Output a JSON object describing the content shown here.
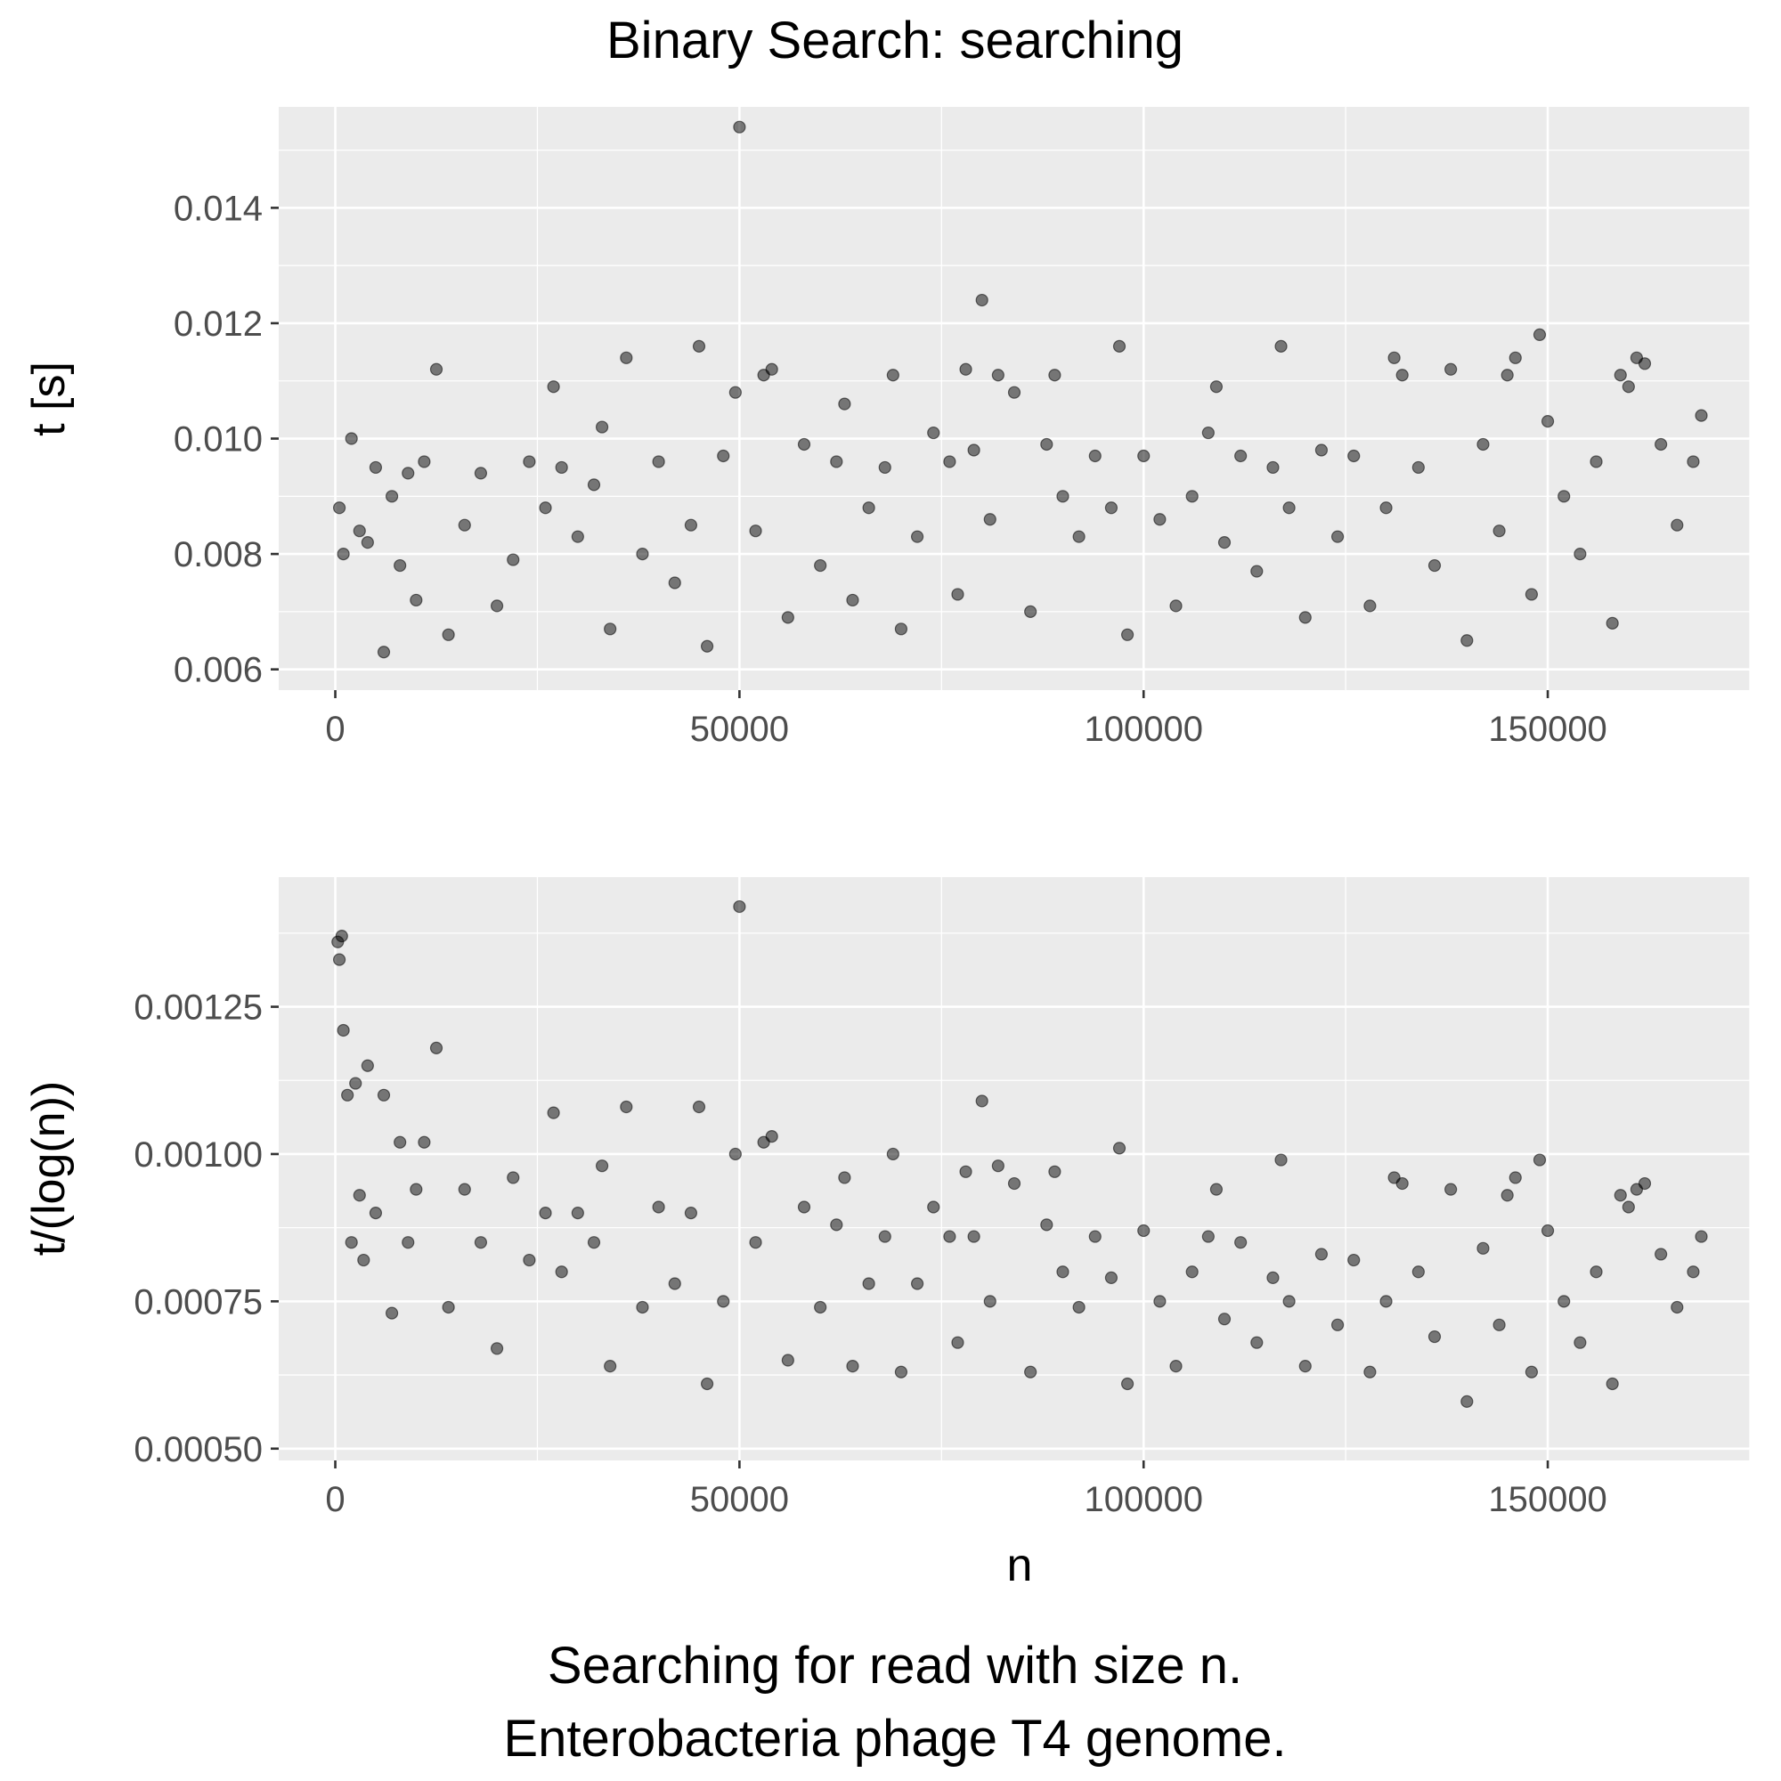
{
  "title": "Binary Search: searching",
  "caption": [
    "Searching for read with size n.",
    "Enterobacteria phage T4 genome."
  ],
  "chart_data": [
    {
      "type": "scatter",
      "title": "Binary Search: searching",
      "xlabel": "",
      "ylabel": "t [s]",
      "xlim": [
        -7000,
        175000
      ],
      "ylim": [
        0.00564,
        0.01575
      ],
      "x_ticks": [
        0,
        50000,
        100000,
        150000
      ],
      "y_ticks": [
        0.006,
        0.008,
        0.01,
        0.012,
        0.014
      ],
      "y_tick_labels": [
        "0.006",
        "0.008",
        "0.010",
        "0.012",
        "0.014"
      ],
      "grid": true,
      "point_color": "#000000",
      "point_alpha": 0.5,
      "x": [
        500,
        1000,
        2000,
        3000,
        4000,
        5000,
        6000,
        7000,
        8000,
        9000,
        10000,
        11000,
        12500,
        14000,
        16000,
        18000,
        20000,
        22000,
        24000,
        26000,
        27000,
        28000,
        30000,
        32000,
        33000,
        34000,
        36000,
        38000,
        40000,
        42000,
        44000,
        45000,
        46000,
        48000,
        49500,
        50000,
        52000,
        53000,
        54000,
        56000,
        58000,
        60000,
        62000,
        63000,
        64000,
        66000,
        68000,
        69000,
        70000,
        72000,
        74000,
        76000,
        77000,
        78000,
        79000,
        80000,
        81000,
        82000,
        84000,
        86000,
        88000,
        89000,
        90000,
        92000,
        94000,
        96000,
        97000,
        98000,
        100000,
        102000,
        104000,
        106000,
        108000,
        109000,
        110000,
        112000,
        114000,
        116000,
        117000,
        118000,
        120000,
        122000,
        124000,
        126000,
        128000,
        130000,
        131000,
        132000,
        134000,
        136000,
        138000,
        140000,
        142000,
        144000,
        145000,
        146000,
        148000,
        149000,
        150000,
        152000,
        154000,
        156000,
        158000,
        159000,
        160000,
        161000,
        162000,
        164000,
        166000,
        168000,
        169000
      ],
      "y": [
        0.0088,
        0.008,
        0.01,
        0.0084,
        0.0082,
        0.0095,
        0.0063,
        0.009,
        0.0078,
        0.0094,
        0.0072,
        0.0096,
        0.0112,
        0.0066,
        0.0085,
        0.0094,
        0.0071,
        0.0079,
        0.0096,
        0.0088,
        0.0109,
        0.0095,
        0.0083,
        0.0092,
        0.0102,
        0.0067,
        0.0114,
        0.008,
        0.0096,
        0.0075,
        0.0085,
        0.0116,
        0.0064,
        0.0097,
        0.0108,
        0.0154,
        0.0084,
        0.0111,
        0.0112,
        0.0069,
        0.0099,
        0.0078,
        0.0096,
        0.0106,
        0.0072,
        0.0088,
        0.0095,
        0.0111,
        0.0067,
        0.0083,
        0.0101,
        0.0096,
        0.0073,
        0.0112,
        0.0098,
        0.0124,
        0.0086,
        0.0111,
        0.0108,
        0.007,
        0.0099,
        0.0111,
        0.009,
        0.0083,
        0.0097,
        0.0088,
        0.0116,
        0.0066,
        0.0097,
        0.0086,
        0.0071,
        0.009,
        0.0101,
        0.0109,
        0.0082,
        0.0097,
        0.0077,
        0.0095,
        0.0116,
        0.0088,
        0.0069,
        0.0098,
        0.0083,
        0.0097,
        0.0071,
        0.0088,
        0.0114,
        0.0111,
        0.0095,
        0.0078,
        0.0112,
        0.0065,
        0.0099,
        0.0084,
        0.0111,
        0.0114,
        0.0073,
        0.0118,
        0.0103,
        0.009,
        0.008,
        0.0096,
        0.0068,
        0.0111,
        0.0109,
        0.0114,
        0.0113,
        0.0099,
        0.0085,
        0.0096,
        0.0104
      ]
    },
    {
      "type": "scatter",
      "xlabel": "n",
      "ylabel": "t/(log(n))",
      "xlim": [
        -7000,
        175000
      ],
      "ylim": [
        0.00048,
        0.00147
      ],
      "x_ticks": [
        0,
        50000,
        100000,
        150000
      ],
      "y_ticks": [
        0.0005,
        0.00075,
        0.001,
        0.00125
      ],
      "y_tick_labels": [
        "0.00050",
        "0.00075",
        "0.00100",
        "0.00125"
      ],
      "grid": true,
      "point_color": "#000000",
      "point_alpha": 0.5,
      "x": [
        300,
        500,
        800,
        1000,
        1500,
        2000,
        2500,
        3000,
        3500,
        4000,
        5000,
        6000,
        7000,
        8000,
        9000,
        10000,
        11000,
        12500,
        14000,
        16000,
        18000,
        20000,
        22000,
        24000,
        26000,
        27000,
        28000,
        30000,
        32000,
        33000,
        34000,
        36000,
        38000,
        40000,
        42000,
        44000,
        45000,
        46000,
        48000,
        49500,
        50000,
        52000,
        53000,
        54000,
        56000,
        58000,
        60000,
        62000,
        63000,
        64000,
        66000,
        68000,
        69000,
        70000,
        72000,
        74000,
        76000,
        77000,
        78000,
        79000,
        80000,
        81000,
        82000,
        84000,
        86000,
        88000,
        89000,
        90000,
        92000,
        94000,
        96000,
        97000,
        98000,
        100000,
        102000,
        104000,
        106000,
        108000,
        109000,
        110000,
        112000,
        114000,
        116000,
        117000,
        118000,
        120000,
        122000,
        124000,
        126000,
        128000,
        130000,
        131000,
        132000,
        134000,
        136000,
        138000,
        140000,
        142000,
        144000,
        145000,
        146000,
        148000,
        149000,
        150000,
        152000,
        154000,
        156000,
        158000,
        159000,
        160000,
        161000,
        162000,
        164000,
        166000,
        168000,
        169000
      ],
      "y": [
        0.00136,
        0.00133,
        0.00137,
        0.00121,
        0.0011,
        0.00085,
        0.00112,
        0.00093,
        0.00082,
        0.00115,
        0.0009,
        0.0011,
        0.00073,
        0.00102,
        0.00085,
        0.00094,
        0.00102,
        0.00118,
        0.00074,
        0.00094,
        0.00085,
        0.00067,
        0.00096,
        0.00082,
        0.0009,
        0.00107,
        0.0008,
        0.0009,
        0.00085,
        0.00098,
        0.00064,
        0.00108,
        0.00074,
        0.00091,
        0.00078,
        0.0009,
        0.00108,
        0.00061,
        0.00075,
        0.001,
        0.00142,
        0.00085,
        0.00102,
        0.00103,
        0.00065,
        0.00091,
        0.00074,
        0.00088,
        0.00096,
        0.00064,
        0.00078,
        0.00086,
        0.001,
        0.00063,
        0.00078,
        0.00091,
        0.00086,
        0.00068,
        0.00097,
        0.00086,
        0.00109,
        0.00075,
        0.00098,
        0.00095,
        0.00063,
        0.00088,
        0.00097,
        0.0008,
        0.00074,
        0.00086,
        0.00079,
        0.00101,
        0.00061,
        0.00087,
        0.00075,
        0.00064,
        0.0008,
        0.00086,
        0.00094,
        0.00072,
        0.00085,
        0.00068,
        0.00079,
        0.00099,
        0.00075,
        0.00064,
        0.00083,
        0.00071,
        0.00082,
        0.00063,
        0.00075,
        0.00096,
        0.00095,
        0.0008,
        0.00069,
        0.00094,
        0.00058,
        0.00084,
        0.00071,
        0.00093,
        0.00096,
        0.00063,
        0.00099,
        0.00087,
        0.00075,
        0.00068,
        0.0008,
        0.00061,
        0.00093,
        0.00091,
        0.00094,
        0.00095,
        0.00083,
        0.00074,
        0.0008,
        0.00086
      ]
    }
  ]
}
